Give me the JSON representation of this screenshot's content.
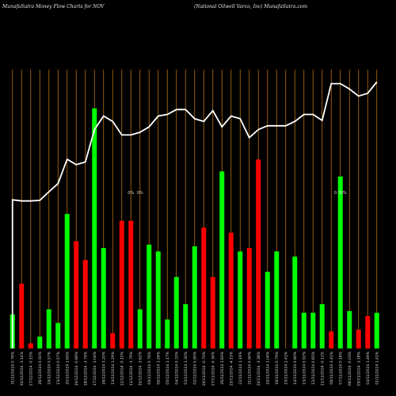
{
  "header": {
    "left": "MunafaSutra  Money Flow  Charts for NOV",
    "right": "(National Oilwell Varco, Inc)  MunafaSutra.com"
  },
  "chart_data": {
    "type": "bar",
    "colors": {
      "up": "#00ff00",
      "down": "#ff0000",
      "line": "#ffffff",
      "grid": "#b8730f",
      "background": "#000000"
    },
    "categories": [
      "31/12/2024 0.76%",
      "30/12/2024 -1.14%",
      "27/12/2024 -0.15%",
      "26/12/2024 0.50%",
      "24/12/2024 0.57%",
      "23/12/2024 0.57%",
      "20/12/2024 1.65%",
      "19/12/2024 -0.86%",
      "18/12/2024 -3.79%",
      "17/12/2024 -1.04%",
      "16/12/2024 3.20%",
      "13/12/2024 1.29%",
      "12/12/2024 -0.15%",
      "11/12/2024 -1.79%",
      "10/12/2024 -3.62%",
      "09/12/2024 0.76%",
      "06/12/2024 1.26%",
      "05/12/2024 1.17%",
      "04/12/2024 0.33%",
      "03/12/2024 1.30%",
      "02/12/2024 0.90%",
      "29/11/2024 -0.70%",
      "27/11/2024 -0.34%",
      "26/11/2024 1.83%",
      "25/11/2024 -4.15%",
      "22/11/2024 1.19%",
      "21/11/2024 0.90%",
      "20/11/2024 -3.38%",
      "19/11/2024 1.04%",
      "18/11/2024 0.79%",
      "15/11/2024 2.41%",
      "14/11/2024 0.80%",
      "13/11/2024 0.92%",
      "12/11/2024 0.65%",
      "11/11/2024 -0.11%",
      "08/11/2024 3.41%",
      "07/11/2024 0.18%",
      "06/11/2024 -0.03%",
      "05/11/2024 -1.18%",
      "04/11/2024 1.49%",
      "01/11/2024 1.41%"
    ],
    "values": [
      10,
      19,
      1.5,
      3.5,
      11.5,
      7.5,
      39.5,
      31.5,
      26,
      70.5,
      29.5,
      4.5,
      37.5,
      37.5,
      11.5,
      30.5,
      28.5,
      8.5,
      21,
      13,
      30,
      35.5,
      21,
      52,
      34,
      28.5,
      29.5,
      55.5,
      22.5,
      28.5,
      0,
      27,
      10.5,
      10.5,
      13,
      5,
      50.5,
      11,
      5.5,
      9.5,
      10.5
    ],
    "directions": [
      "up",
      "down",
      "down",
      "up",
      "up",
      "up",
      "up",
      "down",
      "down",
      "up",
      "up",
      "down",
      "down",
      "down",
      "up",
      "up",
      "up",
      "up",
      "up",
      "up",
      "up",
      "down",
      "down",
      "up",
      "down",
      "up",
      "down",
      "down",
      "up",
      "up",
      "up",
      "up",
      "up",
      "up",
      "up",
      "down",
      "up",
      "up",
      "down",
      "down",
      "up"
    ],
    "price_line": [
      59.5,
      59.3,
      59.3,
      59.4,
      61,
      62.5,
      67,
      66,
      66.5,
      72.5,
      75,
      74,
      71.5,
      71.5,
      72,
      73,
      75,
      75.3,
      76.2,
      76.2,
      74.5,
      74,
      76,
      73,
      75,
      74.5,
      71,
      72.5,
      73.2,
      73.2,
      73.2,
      74,
      75.3,
      75.3,
      74.2,
      81,
      81,
      80,
      78.7,
      79.2,
      81.3
    ],
    "volume_max": 100,
    "price_range": [
      32,
      95
    ],
    "grid": "vertical",
    "xlabel": "",
    "ylabel": "",
    "special_labels": [
      {
        "index": 13,
        "text": "0%"
      },
      {
        "index": 14,
        "text": "0%"
      },
      {
        "index": 36,
        "text": "0.39%"
      }
    ]
  }
}
